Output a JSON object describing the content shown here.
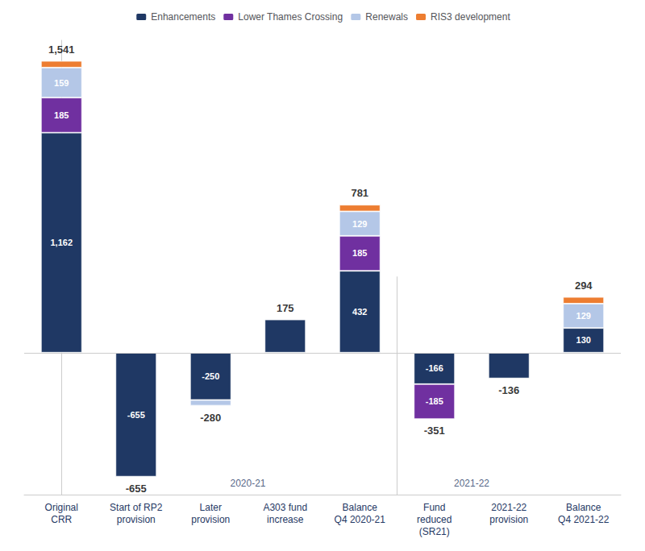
{
  "chart_data": {
    "type": "bar",
    "stacked": true,
    "categories": [
      "Original\nCRR",
      "Start of RP2\nprovision",
      "Later\nprovision",
      "A303 fund\nincrease",
      "Balance\nQ4 2020-21",
      "Fund\nreduced\n(SR21)",
      "2021-22\nprovision",
      "Balance\nQ4 2021-22"
    ],
    "series": [
      {
        "name": "Enhancements",
        "color": "#1f3864",
        "values": [
          1162,
          -655,
          -250,
          175,
          432,
          -166,
          -136,
          130
        ],
        "value_labels": [
          "1,162",
          "-655",
          "-250",
          null,
          "432",
          "-166",
          null,
          "130"
        ]
      },
      {
        "name": "Lower Thames Crossing",
        "color": "#7030a0",
        "values": [
          185,
          null,
          null,
          null,
          185,
          -185,
          null,
          null
        ],
        "value_labels": [
          "185",
          null,
          null,
          null,
          "185",
          "-185",
          null,
          null
        ]
      },
      {
        "name": "Renewals",
        "color": "#b4c7e7",
        "values": [
          159,
          null,
          -30,
          null,
          129,
          null,
          null,
          129
        ],
        "value_labels": [
          "159",
          null,
          null,
          null,
          "129",
          null,
          null,
          "129"
        ]
      },
      {
        "name": "RIS3 development",
        "color": "#ed7d31",
        "values": [
          35,
          null,
          null,
          null,
          35,
          null,
          null,
          35
        ],
        "value_labels": [
          null,
          null,
          null,
          null,
          null,
          null,
          null,
          null
        ]
      }
    ],
    "totals": {
      "values": [
        1541,
        -655,
        -280,
        175,
        781,
        -351,
        -136,
        294
      ],
      "value_labels": [
        "1,541",
        "-655",
        "-280",
        "175",
        "781",
        "-351",
        "-136",
        "294"
      ]
    },
    "annotations": [
      {
        "text": "2020-21",
        "x": 2.5
      },
      {
        "text": "2021-22",
        "x": 5.5
      }
    ],
    "vlines": [
      4.5
    ],
    "ylim": [
      -750,
      1650
    ],
    "yticks": [],
    "tick_labels": "x",
    "grid": false,
    "legend": "top",
    "data_labels": true
  }
}
